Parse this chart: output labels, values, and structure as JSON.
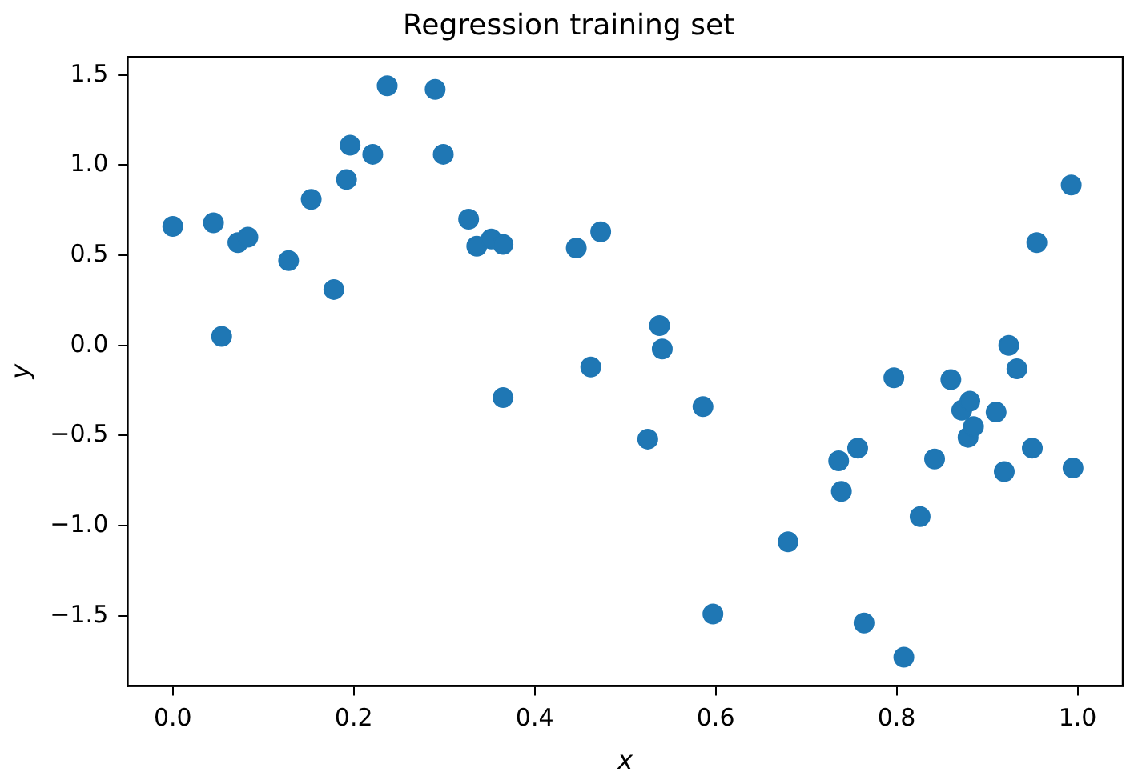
{
  "chart_data": {
    "type": "scatter",
    "title": "Regression training set",
    "xlabel": "x",
    "ylabel": "y",
    "series": [
      {
        "color": "#1f77b4",
        "x": [
          0.0,
          0.045,
          0.054,
          0.072,
          0.083,
          0.128,
          0.153,
          0.178,
          0.192,
          0.196,
          0.221,
          0.237,
          0.29,
          0.299,
          0.327,
          0.336,
          0.352,
          0.365,
          0.365,
          0.446,
          0.462,
          0.473,
          0.525,
          0.538,
          0.541,
          0.586,
          0.597,
          0.68,
          0.736,
          0.739,
          0.757,
          0.764,
          0.797,
          0.808,
          0.826,
          0.842,
          0.86,
          0.872,
          0.879,
          0.881,
          0.885,
          0.91,
          0.919,
          0.924,
          0.933,
          0.95,
          0.955,
          0.993,
          0.995
        ],
        "values": [
          0.66,
          0.68,
          0.05,
          0.57,
          0.6,
          0.47,
          0.81,
          0.31,
          0.92,
          1.11,
          1.06,
          1.44,
          1.42,
          1.06,
          0.7,
          0.55,
          0.59,
          0.56,
          -0.29,
          0.54,
          -0.12,
          0.63,
          -0.52,
          0.11,
          -0.02,
          -0.34,
          -1.49,
          -1.09,
          -0.64,
          -0.81,
          -0.57,
          -1.54,
          -0.18,
          -1.73,
          -0.95,
          -0.63,
          -0.19,
          -0.36,
          -0.51,
          -0.31,
          -0.45,
          -0.37,
          -0.7,
          0.0,
          -0.13,
          -0.57,
          0.57,
          0.89,
          -0.68
        ]
      }
    ],
    "marker": "circle",
    "grid": false,
    "legend": false,
    "xlim": [
      -0.05,
      1.05
    ],
    "ylim": [
      -1.89,
      1.6
    ],
    "xticks": [
      {
        "value": 0,
        "label": "0.0"
      },
      {
        "value": 0.2,
        "label": "0.2"
      },
      {
        "value": 0.4,
        "label": "0.4"
      },
      {
        "value": 0.6,
        "label": "0.6"
      },
      {
        "value": 0.8,
        "label": "0.8"
      },
      {
        "value": 1,
        "label": "1.0"
      }
    ],
    "yticks": [
      {
        "value": -1.5,
        "label": "−1.5"
      },
      {
        "value": -1,
        "label": "−1.0"
      },
      {
        "value": -0.5,
        "label": "−0.5"
      },
      {
        "value": 0,
        "label": "0.0"
      },
      {
        "value": 0.5,
        "label": "0.5"
      },
      {
        "value": 1,
        "label": "1.0"
      },
      {
        "value": 1.5,
        "label": "1.5"
      }
    ]
  }
}
